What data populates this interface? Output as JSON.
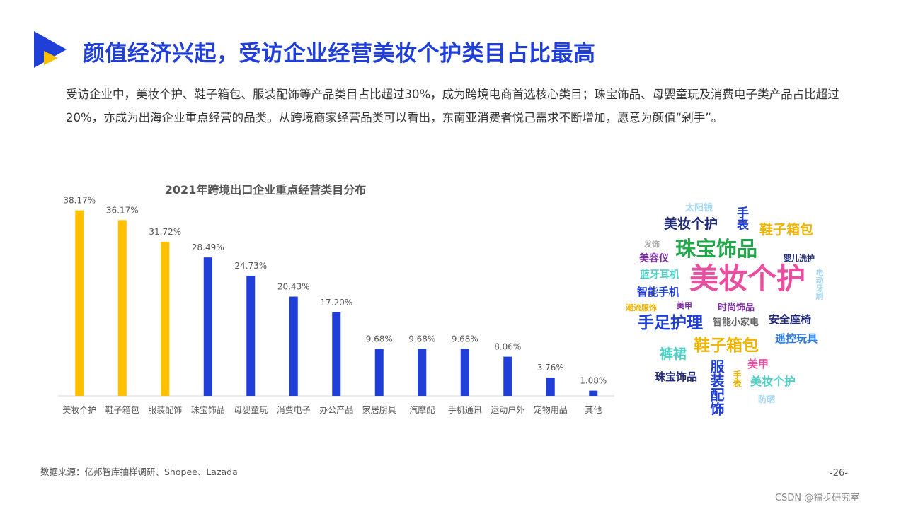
{
  "page": {
    "title": "颜值经济兴起，受访企业经营美妆个护类目占比最高",
    "intro": "受访企业中，美妆个护、鞋子箱包、服装配饰等产品类目占比超过30%，成为跨境电商首选核心类目；珠宝饰品、母婴童玩及消费电子类产品占比超过20%，亦成为出海企业重点经营的品类。从跨境商家经营品类可以看出，东南亚消费者悦己需求不断增加，愿意为颜值“剁手”。",
    "source": "数据来源：亿邦智库抽样调研、Shopee、Lazada",
    "page_number": "-26-",
    "watermark": "CSDN @福步研究室",
    "brand_colors": {
      "blue": "#1f3fd8",
      "yellow": "#ffc000"
    }
  },
  "chart_data": {
    "type": "bar",
    "title": "2021年跨境出口企业重点经营类目分布",
    "categories": [
      "美妆个护",
      "鞋子箱包",
      "服装配饰",
      "珠宝饰品",
      "母婴童玩",
      "消费电子",
      "办公产品",
      "家居厨具",
      "汽摩配",
      "手机通讯",
      "运动户外",
      "宠物用品",
      "其他"
    ],
    "values": [
      38.17,
      36.17,
      31.72,
      28.49,
      24.73,
      20.43,
      17.2,
      9.68,
      9.68,
      9.68,
      8.06,
      3.76,
      1.08
    ],
    "labels": [
      "38.17%",
      "36.17%",
      "31.72%",
      "28.49%",
      "24.73%",
      "20.43%",
      "17.20%",
      "9.68%",
      "9.68%",
      "9.68%",
      "8.06%",
      "3.76%",
      "1.08%"
    ],
    "highlight_count": 3,
    "colors": {
      "highlight": "#ffc000",
      "normal": "#1f3fd8"
    },
    "xlabel": "",
    "ylabel": "",
    "ylim": [
      0,
      40
    ],
    "grid": false,
    "legend": "none"
  },
  "word_cloud": [
    {
      "text": "太阳镜",
      "color": "#a8d8f0"
    },
    {
      "text": "手表",
      "color": "#1f3fd8"
    },
    {
      "text": "美妆个护",
      "color": "#1f2a78"
    },
    {
      "text": "鞋子箱包",
      "color": "#f0b400"
    },
    {
      "text": "发饰",
      "color": "#aaaaaa"
    },
    {
      "text": "珠宝饰品",
      "color": "#22a84a"
    },
    {
      "text": "美容仪",
      "color": "#7b2fa0"
    },
    {
      "text": "婴儿洗护",
      "color": "#1f2a78"
    },
    {
      "text": "蓝牙耳机",
      "color": "#4fd1c5"
    },
    {
      "text": "美妆个护",
      "color": "#e84fa0"
    },
    {
      "text": "电动牙刷",
      "color": "#a8d8f0"
    },
    {
      "text": "智能手机",
      "color": "#1f3fd8"
    },
    {
      "text": "潮流服饰",
      "color": "#f0b400"
    },
    {
      "text": "美甲",
      "color": "#7b2fa0"
    },
    {
      "text": "时尚饰品",
      "color": "#7b2fa0"
    },
    {
      "text": "手足护理",
      "color": "#1f3fd8"
    },
    {
      "text": "智能小家电",
      "color": "#666666"
    },
    {
      "text": "安全座椅",
      "color": "#1f2a78"
    },
    {
      "text": "遥控玩具",
      "color": "#2a7bd8"
    },
    {
      "text": "裤裙",
      "color": "#4fd1c5"
    },
    {
      "text": "鞋子箱包",
      "color": "#f0b400"
    },
    {
      "text": "美甲",
      "color": "#e84fa0"
    },
    {
      "text": "珠宝饰品",
      "color": "#1f2a78"
    },
    {
      "text": "服装配饰",
      "color": "#1f3fd8"
    },
    {
      "text": "手表",
      "color": "#f0b400"
    },
    {
      "text": "美妆个护",
      "color": "#4fd1c5"
    },
    {
      "text": "防晒",
      "color": "#a8d8f0"
    }
  ]
}
